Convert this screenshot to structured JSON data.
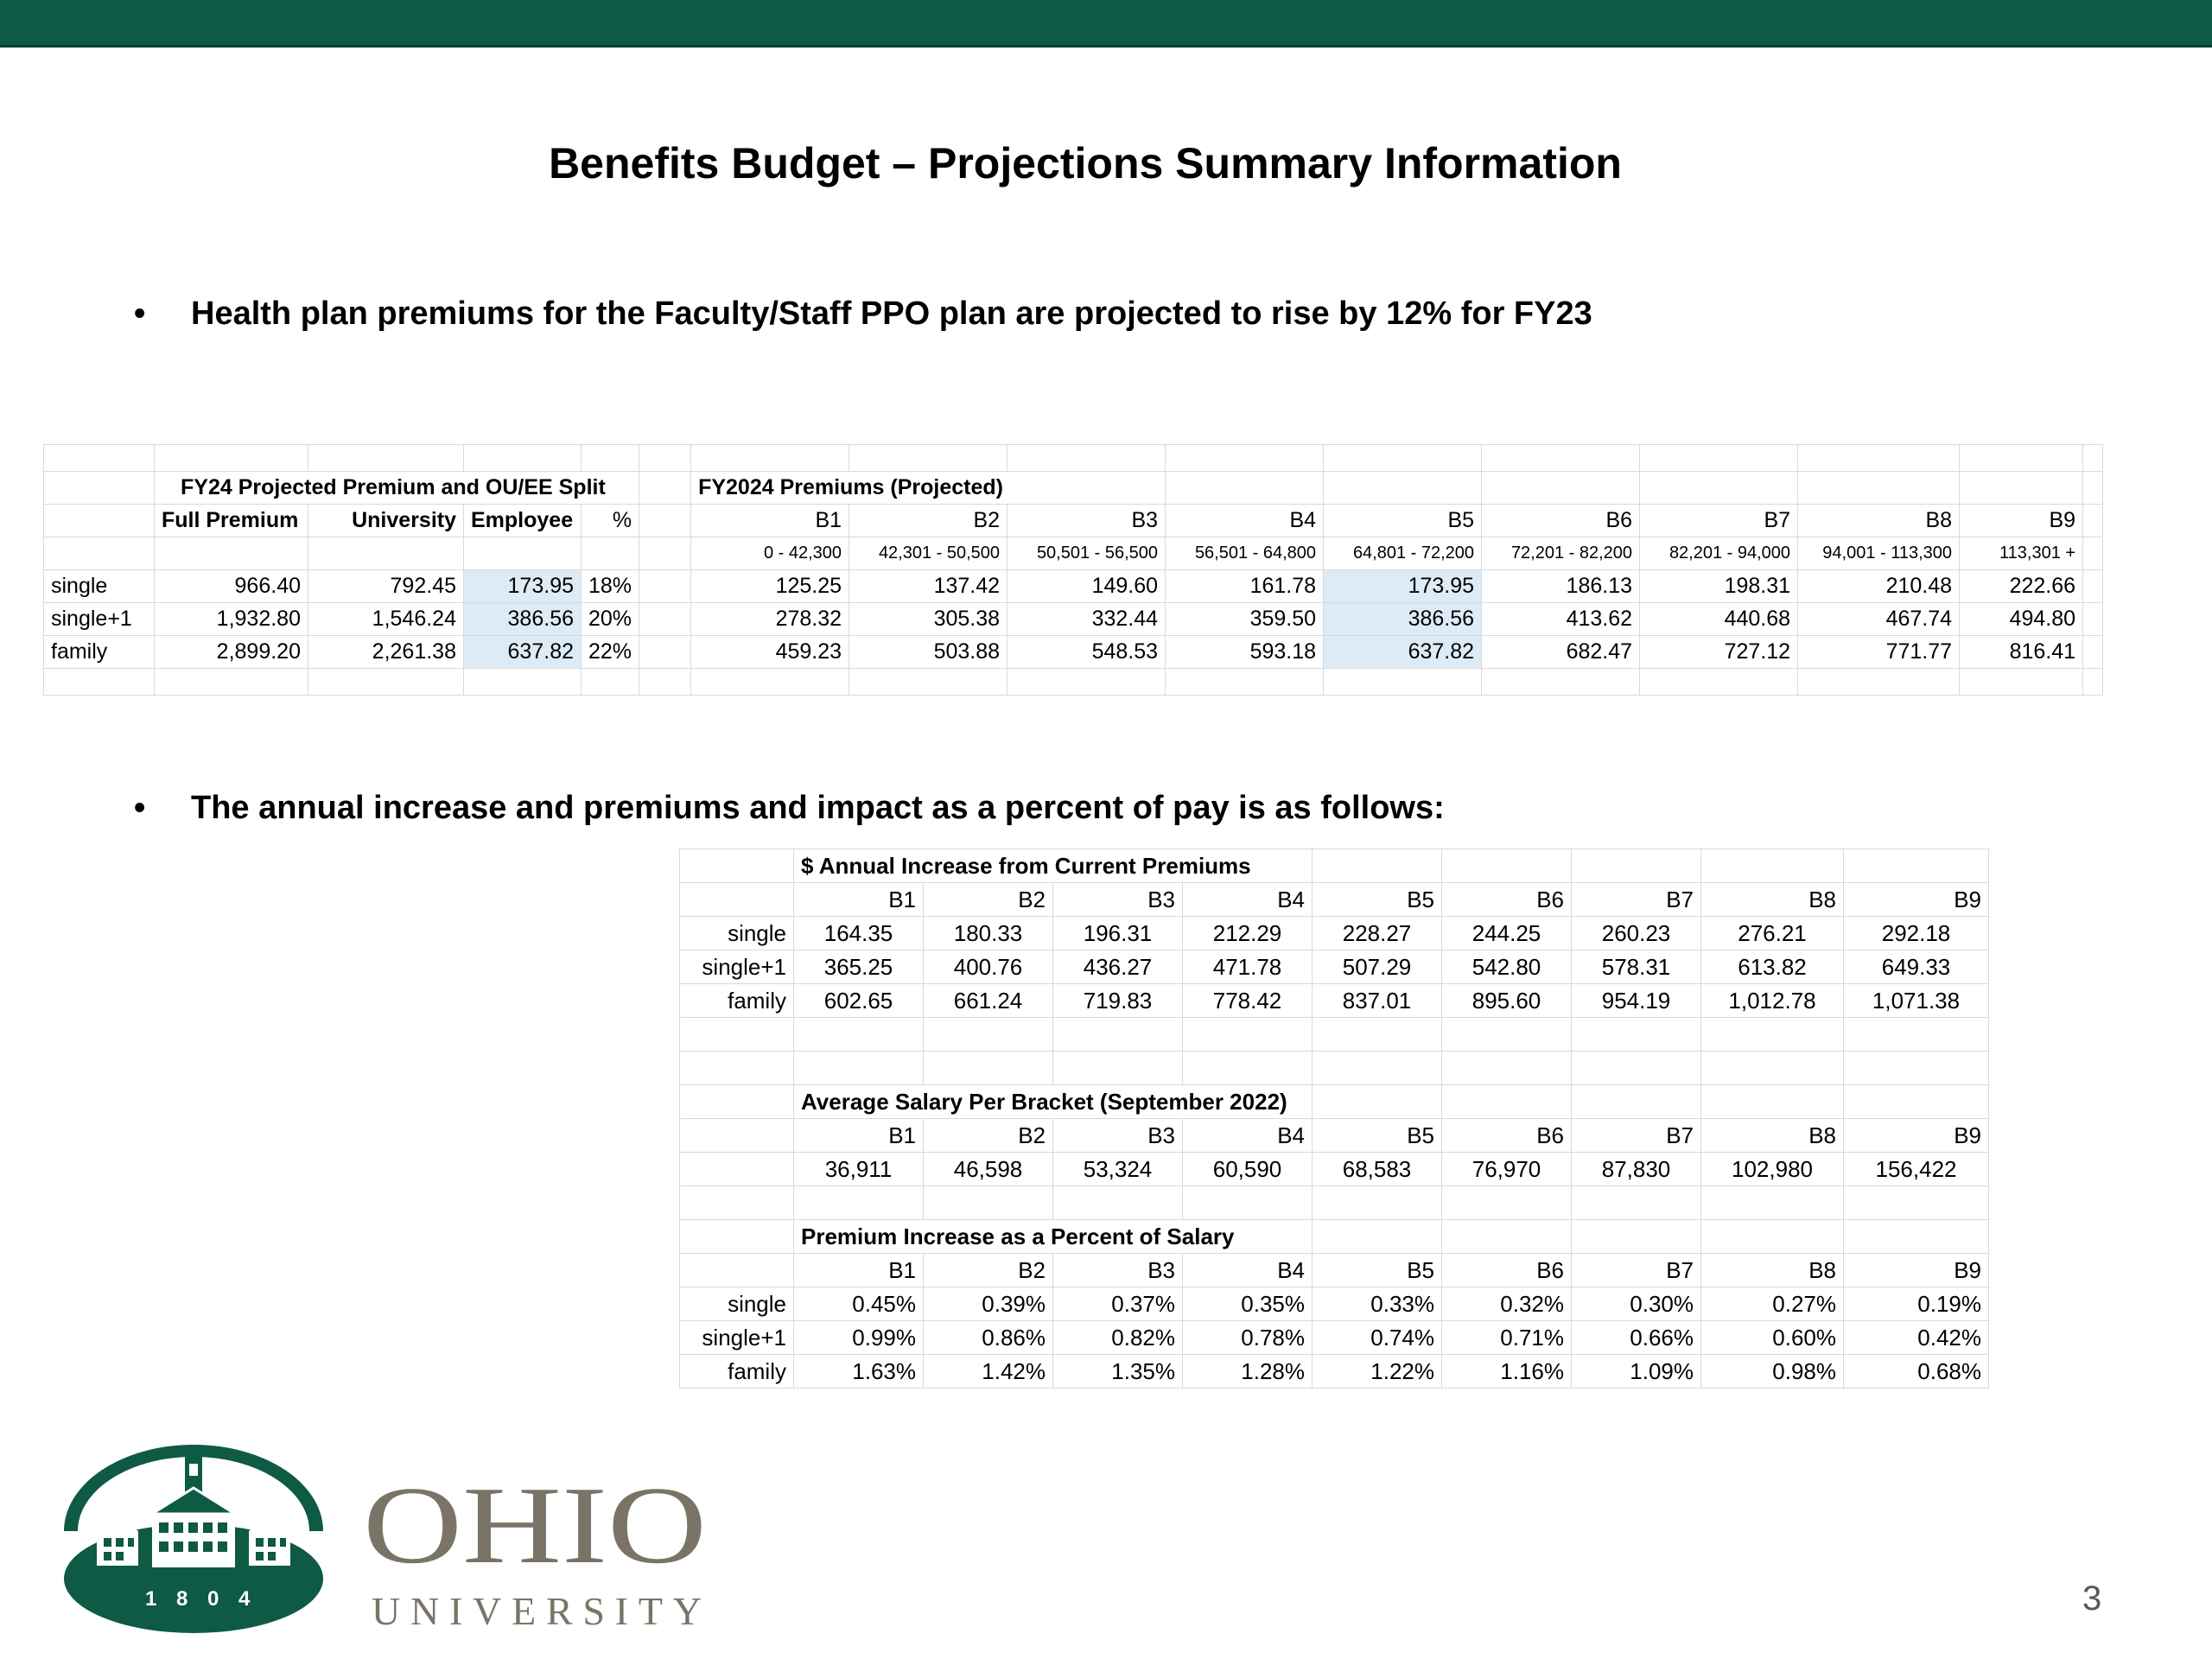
{
  "slide": {
    "title": "Benefits Budget – Projections Summary Information",
    "bullet_marker": "•",
    "bullet1": "Health plan premiums for the Faculty/Staff PPO plan are projected to rise by 12% for FY23",
    "bullet2": "The annual increase and premiums and impact as a percent of pay is as follows:",
    "page_number": "3"
  },
  "colors": {
    "topbar": "#0e5a45",
    "highlight": "#ddebf7",
    "logo_green": "#0e5a45",
    "logo_gray": "#7a7466"
  },
  "table1": {
    "left_title": "FY24 Projected Premium and OU/EE Split",
    "right_title": "FY2024 Premiums (Projected)",
    "headers": [
      "Full Premium",
      "University",
      "Employee",
      "%"
    ],
    "brackets": [
      "B1",
      "B2",
      "B3",
      "B4",
      "B5",
      "B6",
      "B7",
      "B8",
      "B9"
    ],
    "ranges": [
      "0 - 42,300",
      "42,301 - 50,500",
      "50,501 - 56,500",
      "56,501 - 64,800",
      "64,801 - 72,200",
      "72,201 - 82,200",
      "82,201 - 94,000",
      "94,001 - 113,300",
      "113,301 +"
    ],
    "rows": [
      {
        "label": "single",
        "full": "966.40",
        "univ": "792.45",
        "emp": "173.95",
        "pct": "18%",
        "b": [
          "125.25",
          "137.42",
          "149.60",
          "161.78",
          "173.95",
          "186.13",
          "198.31",
          "210.48",
          "222.66"
        ]
      },
      {
        "label": "single+1",
        "full": "1,932.80",
        "univ": "1,546.24",
        "emp": "386.56",
        "pct": "20%",
        "b": [
          "278.32",
          "305.38",
          "332.44",
          "359.50",
          "386.56",
          "413.62",
          "440.68",
          "467.74",
          "494.80"
        ]
      },
      {
        "label": "family",
        "full": "2,899.20",
        "univ": "2,261.38",
        "emp": "637.82",
        "pct": "22%",
        "b": [
          "459.23",
          "503.88",
          "548.53",
          "593.18",
          "637.82",
          "682.47",
          "727.12",
          "771.77",
          "816.41"
        ]
      }
    ]
  },
  "table2": {
    "brackets": [
      "B1",
      "B2",
      "B3",
      "B4",
      "B5",
      "B6",
      "B7",
      "B8",
      "B9"
    ],
    "section1": {
      "title": "$ Annual Increase from Current Premiums",
      "rows": [
        {
          "label": "single",
          "values": [
            "164.35",
            "180.33",
            "196.31",
            "212.29",
            "228.27",
            "244.25",
            "260.23",
            "276.21",
            "292.18"
          ]
        },
        {
          "label": "single+1",
          "values": [
            "365.25",
            "400.76",
            "436.27",
            "471.78",
            "507.29",
            "542.80",
            "578.31",
            "613.82",
            "649.33"
          ]
        },
        {
          "label": "family",
          "values": [
            "602.65",
            "661.24",
            "719.83",
            "778.42",
            "837.01",
            "895.60",
            "954.19",
            "1,012.78",
            "1,071.38"
          ]
        }
      ]
    },
    "section2": {
      "title": "Average Salary Per Bracket (September 2022)",
      "values": [
        "36,911",
        "46,598",
        "53,324",
        "60,590",
        "68,583",
        "76,970",
        "87,830",
        "102,980",
        "156,422"
      ]
    },
    "section3": {
      "title": "Premium Increase as a Percent of Salary",
      "rows": [
        {
          "label": "single",
          "values": [
            "0.45%",
            "0.39%",
            "0.37%",
            "0.35%",
            "0.33%",
            "0.32%",
            "0.30%",
            "0.27%",
            "0.19%"
          ]
        },
        {
          "label": "single+1",
          "values": [
            "0.99%",
            "0.86%",
            "0.82%",
            "0.78%",
            "0.74%",
            "0.71%",
            "0.66%",
            "0.60%",
            "0.42%"
          ]
        },
        {
          "label": "family",
          "values": [
            "1.63%",
            "1.42%",
            "1.35%",
            "1.28%",
            "1.22%",
            "1.16%",
            "1.09%",
            "0.98%",
            "0.68%"
          ]
        }
      ]
    }
  },
  "logo": {
    "year_digits": [
      "1",
      "8",
      "0",
      "4"
    ],
    "word1": "OHIO",
    "word2": "UNIVERSITY"
  }
}
